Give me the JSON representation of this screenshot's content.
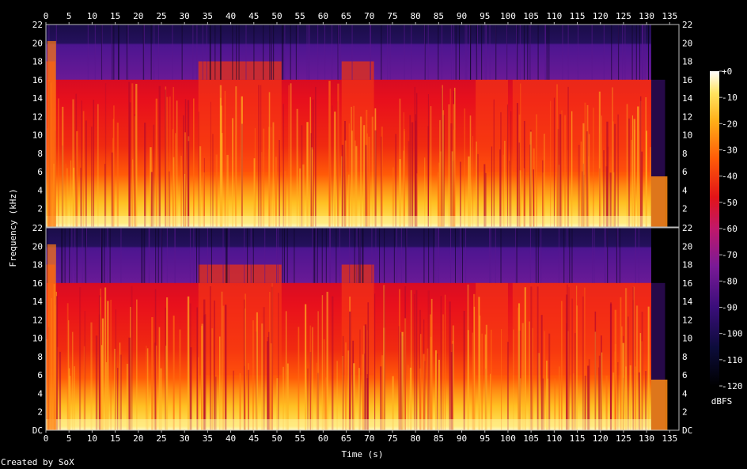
{
  "chart_data": {
    "type": "heatmap",
    "title": "",
    "xlabel": "Time (s)",
    "ylabel": "Frequency (kHz)",
    "xlim": [
      0,
      137
    ],
    "ylim": [
      0,
      22
    ],
    "x_ticks": [
      0,
      5,
      10,
      15,
      20,
      25,
      30,
      35,
      40,
      45,
      50,
      55,
      60,
      65,
      70,
      75,
      80,
      85,
      90,
      95,
      100,
      105,
      110,
      115,
      120,
      125,
      130,
      135
    ],
    "channels": [
      {
        "name": "",
        "y_ticks": [
          "2",
          "4",
          "6",
          "8",
          "10",
          "12",
          "14",
          "16",
          "18",
          "20",
          "22"
        ]
      },
      {
        "name": "",
        "y_ticks": [
          "DC",
          "2",
          "4",
          "6",
          "8",
          "10",
          "12",
          "14",
          "16",
          "18",
          "20",
          "22"
        ]
      }
    ],
    "colorbar": {
      "label": "dBFS",
      "ticks": [
        "+0",
        "-10",
        "-20",
        "-30",
        "-40",
        "-50",
        "-60",
        "-70",
        "-80",
        "-90",
        "-100",
        "-110",
        "-120"
      ],
      "range": [
        -120,
        0
      ]
    },
    "lowpass_cutoff_khz": 16,
    "upper_band_khz": [
      16,
      20
    ],
    "loud_sections_s": [
      [
        0,
        2
      ],
      [
        33,
        51
      ],
      [
        64,
        71
      ],
      [
        93,
        100
      ],
      [
        101,
        131
      ]
    ],
    "end_of_audio_s": 131
  },
  "footer": {
    "credit": "Created by SoX"
  }
}
